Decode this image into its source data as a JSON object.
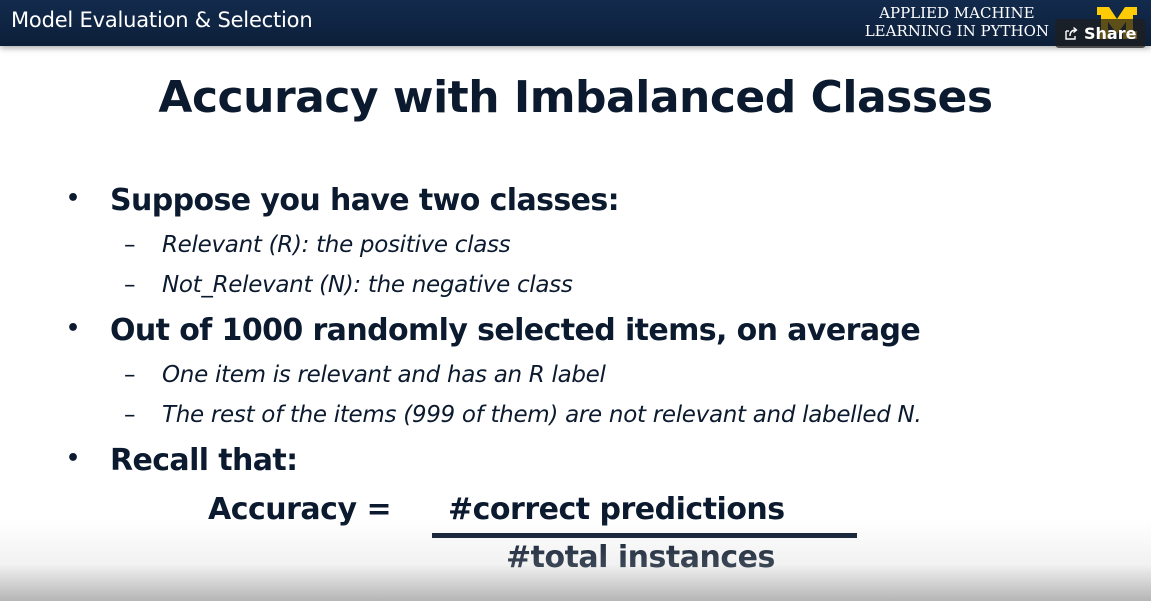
{
  "header": {
    "course_title": "Model Evaluation & Selection",
    "brand_line1": "APPLIED MACHINE",
    "brand_line2": "LEARNING IN PYTHON",
    "logo_icon": "university-block-m-logo",
    "brand_color": "#ffcb05",
    "share_label": "Share",
    "share_icon": "share-icon"
  },
  "slide": {
    "title": "Accuracy with Imbalanced Classes",
    "bullets": [
      {
        "text": "Suppose you have two classes:",
        "subs": [
          "Relevant (R):  the positive class",
          "Not_Relevant (N): the negative class"
        ]
      },
      {
        "text": "Out of 1000 randomly selected items, on average",
        "subs": [
          "One item is relevant and has an R label",
          "The rest of the items (999 of them) are not relevant and labelled N."
        ]
      },
      {
        "text": "Recall that:",
        "subs": []
      }
    ],
    "formula": {
      "label": "Accuracy =",
      "numerator": "#correct predictions",
      "denominator": "#total instances"
    },
    "bullet_glyph": "•",
    "dash_glyph": "–"
  }
}
